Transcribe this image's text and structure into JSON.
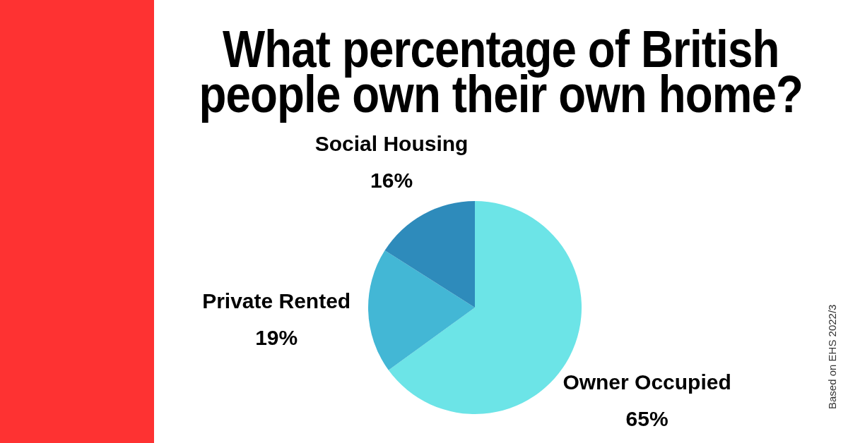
{
  "chart_data": {
    "type": "pie",
    "title": "What percentage of British people own their own home?",
    "categories": [
      "Owner Occupied",
      "Private Rented",
      "Social Housing"
    ],
    "values": [
      65,
      19,
      16
    ],
    "value_labels": [
      "65%",
      "19%",
      "16%"
    ],
    "colors": [
      "#6ce4e7",
      "#43b7d5",
      "#2e8bbb"
    ],
    "annotations": [
      "Based on EHS 2022/3"
    ]
  }
}
